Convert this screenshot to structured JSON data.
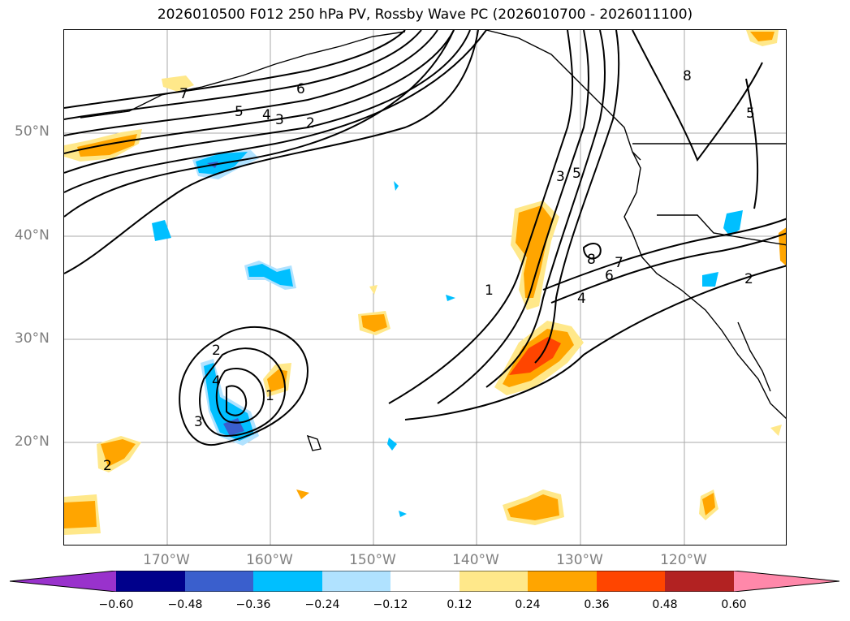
{
  "title": "2026010500 F012 250 hPa PV, Rossby Wave PC (2026010700 - 2026011100)",
  "lat_labels": [
    "50°N",
    "40°N",
    "30°N",
    "20°N"
  ],
  "lon_labels": [
    "170°W",
    "160°W",
    "150°W",
    "140°W",
    "130°W",
    "120°W"
  ],
  "contour_labels": [
    "6",
    "5",
    "4",
    "3",
    "2",
    "7",
    "8",
    "5",
    "3",
    "5",
    "1",
    "7",
    "6",
    "4",
    "2",
    "2",
    "4",
    "3",
    "1",
    "8",
    "2"
  ],
  "colorbar": {
    "ticks": [
      "−0.60",
      "−0.48",
      "−0.36",
      "−0.24",
      "−0.12",
      "0.12",
      "0.24",
      "0.36",
      "0.48",
      "0.60"
    ],
    "colors": [
      "#9932cc",
      "#00008b",
      "#3a5fcd",
      "#00bfff",
      "#b0e2ff",
      "#ffffff",
      "#ffe88a",
      "#ffa500",
      "#ff4500",
      "#b22222",
      "#ff88aa"
    ]
  }
}
